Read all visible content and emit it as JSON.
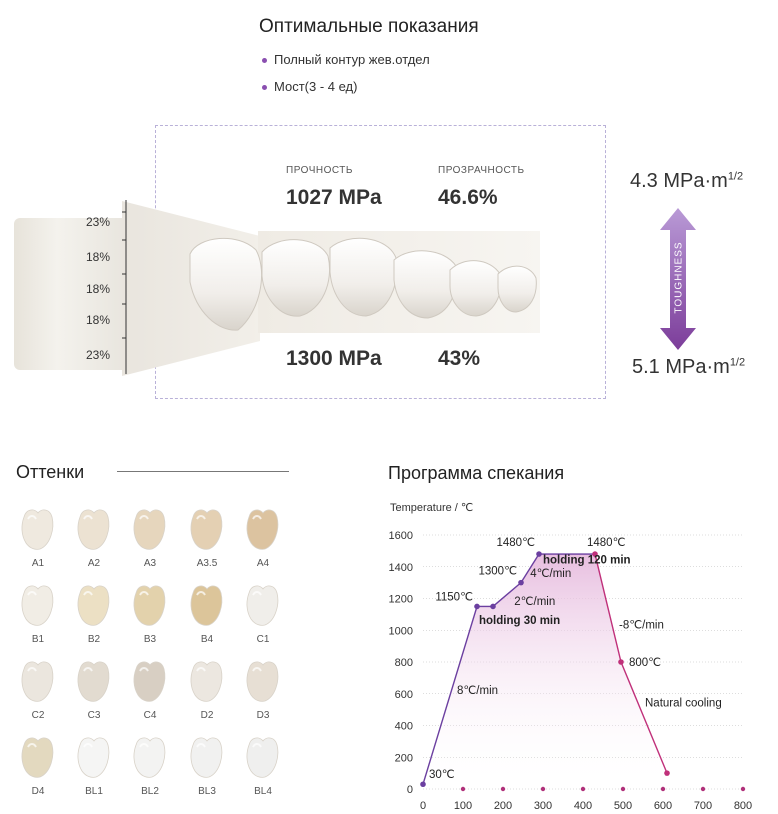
{
  "header": {
    "title": "Оптимальные показания",
    "bullets": [
      "Полный контур жев.отдел",
      "Мост(3 - 4 ед)"
    ]
  },
  "block": {
    "layers": [
      "23%",
      "18%",
      "18%",
      "18%",
      "23%"
    ],
    "top": {
      "strength_label": "ПРОЧНОСТЬ",
      "strength_value": "1027 MPa",
      "translucency_label": "ПРОЗРАЧНОСТЬ",
      "translucency_value": "46.6%"
    },
    "bottom": {
      "strength_value": "1300 MPa",
      "translucency_value": "43%"
    }
  },
  "toughness": {
    "top_value": "4.3 MPa·m",
    "top_exp": "1/2",
    "label": "TOUGHNESS",
    "bottom_value": "5.1 MPa·m",
    "bottom_exp": "1/2"
  },
  "shades": {
    "title": "Оттенки",
    "items": [
      {
        "name": "A1",
        "color": "#efe9df"
      },
      {
        "name": "A2",
        "color": "#ece2d2"
      },
      {
        "name": "A3",
        "color": "#e6d6bd"
      },
      {
        "name": "A3.5",
        "color": "#e4d0b3"
      },
      {
        "name": "A4",
        "color": "#dcc3a0"
      },
      {
        "name": "B1",
        "color": "#f1ede5"
      },
      {
        "name": "B2",
        "color": "#ece0c4"
      },
      {
        "name": "B3",
        "color": "#e3d2ac"
      },
      {
        "name": "B4",
        "color": "#dcc59a"
      },
      {
        "name": "C1",
        "color": "#f0eeea"
      },
      {
        "name": "C2",
        "color": "#ebe6de"
      },
      {
        "name": "C3",
        "color": "#e2dbd0"
      },
      {
        "name": "C4",
        "color": "#d8cfc3"
      },
      {
        "name": "D2",
        "color": "#ece7e0"
      },
      {
        "name": "D3",
        "color": "#e7dfd4"
      },
      {
        "name": "D4",
        "color": "#e3d9bf"
      },
      {
        "name": "BL1",
        "color": "#f5f5f4"
      },
      {
        "name": "BL2",
        "color": "#f3f3f2"
      },
      {
        "name": "BL3",
        "color": "#f1f1f0"
      },
      {
        "name": "BL4",
        "color": "#efefee"
      }
    ]
  },
  "chart_data": {
    "type": "line",
    "title": "Программа спекания",
    "ylabel": "Temperature / ℃",
    "xlim": [
      0,
      800
    ],
    "ylim": [
      0,
      1600
    ],
    "x_ticks": [
      0,
      100,
      200,
      300,
      400,
      500,
      600,
      700,
      800
    ],
    "y_ticks": [
      0,
      200,
      400,
      600,
      800,
      1000,
      1200,
      1400,
      1600
    ],
    "series": [
      {
        "x": [
          0,
          135,
          175,
          245,
          290,
          430,
          495,
          610
        ],
        "y": [
          30,
          1150,
          1150,
          1300,
          1480,
          1480,
          800,
          100
        ]
      }
    ],
    "point_labels": [
      "30℃",
      "1150℃",
      "",
      "1300℃",
      "1480℃",
      "1480℃",
      "800℃",
      ""
    ],
    "annotations": {
      "heat_rate": "8℃/min",
      "hold1": "holding 30 min",
      "rate2": "2℃/min",
      "rate3": "4℃/min",
      "hold2": "holding 120 min",
      "cool_rate": "-8℃/min",
      "cooling": "Natural cooling"
    },
    "colors": {
      "line_up": "#6b3fa0",
      "line_down": "#c0307a",
      "fill_top": "#e5b7dc",
      "grid": "#bbbbbb",
      "axis_dot": "#b0307a"
    }
  }
}
